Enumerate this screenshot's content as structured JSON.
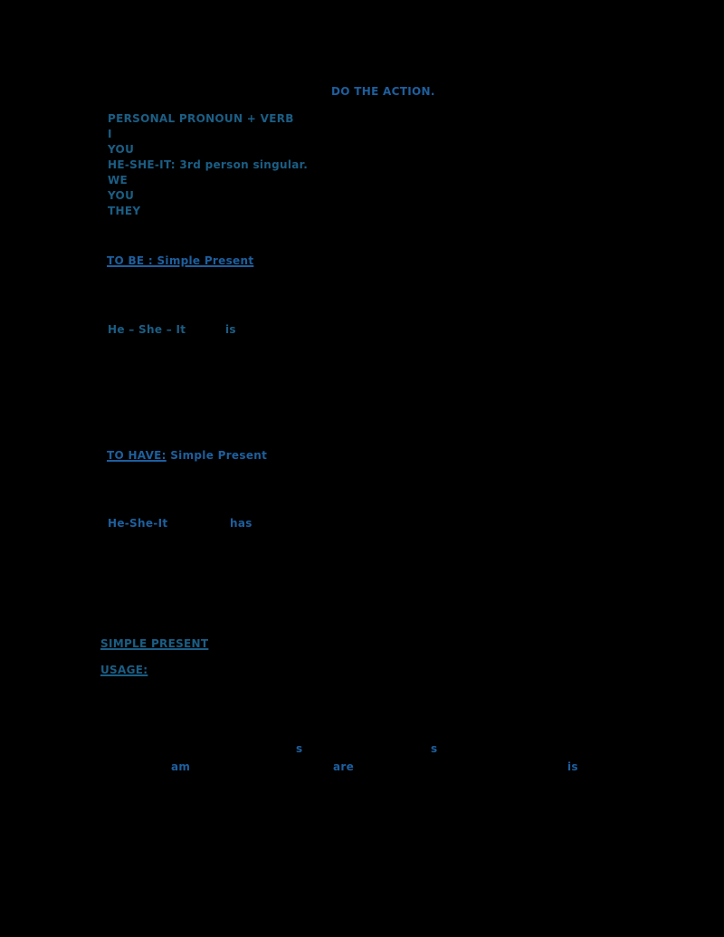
{
  "heading": "DO THE ACTION.",
  "pronouns": {
    "title": "PERSONAL PRONOUN + VERB",
    "items": [
      "I",
      "YOU",
      "HE-SHE-IT: 3rd person singular.",
      "WE",
      "YOU",
      "THEY"
    ]
  },
  "to_be": {
    "title_underlined": "TO BE  : Simple Present",
    "subject": "He – She – It",
    "verb": "is"
  },
  "to_have": {
    "title_underlined": "TO HAVE:",
    "title_rest": " Simple Present",
    "subject": "He-She-It",
    "verb": "has"
  },
  "simple_present": {
    "title": "SIMPLE PRESENT",
    "usage": "USAGE:"
  },
  "fragments": {
    "s1": "s",
    "s2": "s",
    "am": "am",
    "are": "are",
    "is": "is"
  },
  "colors": {
    "background": "#000000",
    "text_blue": "#1e5f9e",
    "text_teal": "#1b5e85"
  }
}
